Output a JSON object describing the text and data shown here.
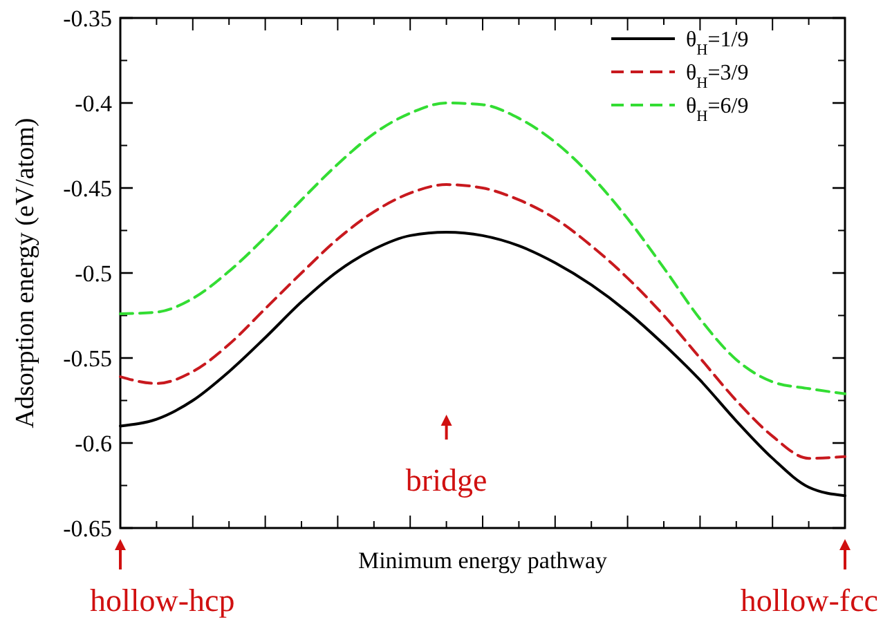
{
  "chart_data": {
    "type": "line",
    "xlabel": "Minimum energy pathway",
    "ylabel": "Adsorption energy (eV/atom)",
    "categories": [
      null,
      null,
      null,
      null,
      null,
      null,
      null,
      null,
      null,
      null,
      null,
      null,
      null,
      null,
      null,
      null,
      null,
      null,
      null,
      null,
      null
    ],
    "ylim": [
      -0.65,
      -0.35
    ],
    "yticks": [
      -0.65,
      -0.6,
      -0.55,
      -0.5,
      -0.45,
      -0.4,
      -0.35
    ],
    "legend": "top right",
    "series": [
      {
        "name": "θ$_{H}$=1/9",
        "color": "#000000",
        "line_style": "solid",
        "values": [
          -0.59,
          -0.586,
          -0.575,
          -0.558,
          -0.538,
          -0.517,
          -0.499,
          -0.486,
          -0.478,
          -0.476,
          -0.478,
          -0.484,
          -0.494,
          -0.507,
          -0.523,
          -0.542,
          -0.563,
          -0.587,
          -0.609,
          -0.626,
          -0.631
        ]
      },
      {
        "name": "θ$_{H}$=3/9",
        "color": "#c8191e",
        "line_style": "dashed",
        "values": [
          -0.561,
          -0.565,
          -0.558,
          -0.542,
          -0.521,
          -0.5,
          -0.48,
          -0.464,
          -0.453,
          -0.448,
          -0.45,
          -0.457,
          -0.468,
          -0.484,
          -0.503,
          -0.525,
          -0.55,
          -0.575,
          -0.596,
          -0.609,
          -0.608
        ]
      },
      {
        "name": "θ$_{H}$=6/9",
        "color": "#33dd33",
        "line_style": "dashed",
        "values": [
          -0.524,
          -0.523,
          -0.515,
          -0.499,
          -0.479,
          -0.457,
          -0.436,
          -0.418,
          -0.406,
          -0.4,
          -0.401,
          -0.409,
          -0.423,
          -0.443,
          -0.468,
          -0.497,
          -0.527,
          -0.551,
          -0.564,
          -0.568,
          -0.571
        ]
      }
    ],
    "annotations": [
      "hollow-hcp",
      "bridge",
      "hollow-fcc"
    ]
  }
}
